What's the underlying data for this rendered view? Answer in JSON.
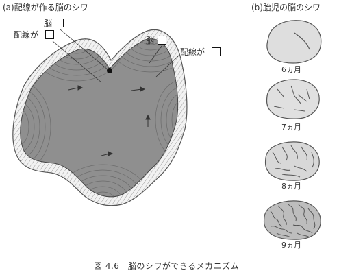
{
  "panel_a": {
    "title": "(a)配線が作る脳のシワ",
    "labels": {
      "brain_left": "脳",
      "wiring_left": "配線が",
      "brain_right": "脳",
      "wiring_right": "配線が"
    }
  },
  "panel_b": {
    "title": "(b)胎児の脳のシワ",
    "stages": [
      {
        "label": "6ヵ月"
      },
      {
        "label": "7ヵ月"
      },
      {
        "label": "8ヵ月"
      },
      {
        "label": "9ヵ月"
      }
    ]
  },
  "caption": "図 4.6　脳のシワができるメカニズム"
}
